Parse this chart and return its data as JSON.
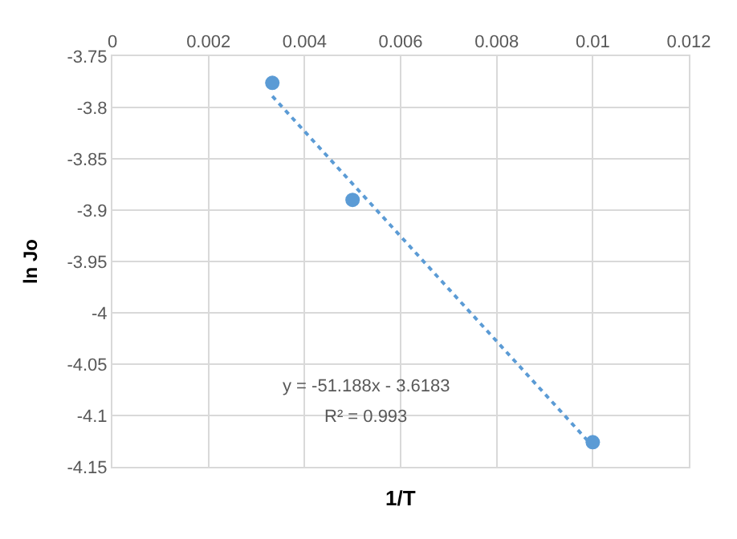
{
  "chart_data": {
    "type": "scatter",
    "xlabel": "1/T",
    "ylabel": "ln Jo",
    "series": [
      {
        "color": "#5b9bd5",
        "x": [
          0.00333,
          0.005,
          0.01
        ],
        "values": [
          -3.776,
          -3.89,
          -4.126
        ],
        "marker": "circle"
      },
      {
        "type": "line",
        "color": "#5b9bd5",
        "x": [
          0.00333,
          0.01
        ],
        "values": [
          -3.789,
          -4.13
        ],
        "marker": "none",
        "line_style": "dotted"
      }
    ],
    "annotations": [
      "y = -51.188x - 3.6183",
      "R² = 0.993"
    ],
    "xlim": [
      0,
      0.012
    ],
    "xticks": [
      0,
      0.002,
      0.004,
      0.006,
      0.008,
      0.01,
      0.012
    ],
    "ylim": [
      -4.15,
      -3.75
    ],
    "yticks": [
      -4.15,
      -4.1,
      -4.05,
      -4,
      -3.95,
      -3.9,
      -3.85,
      -3.8,
      -3.75
    ],
    "grid": true
  }
}
